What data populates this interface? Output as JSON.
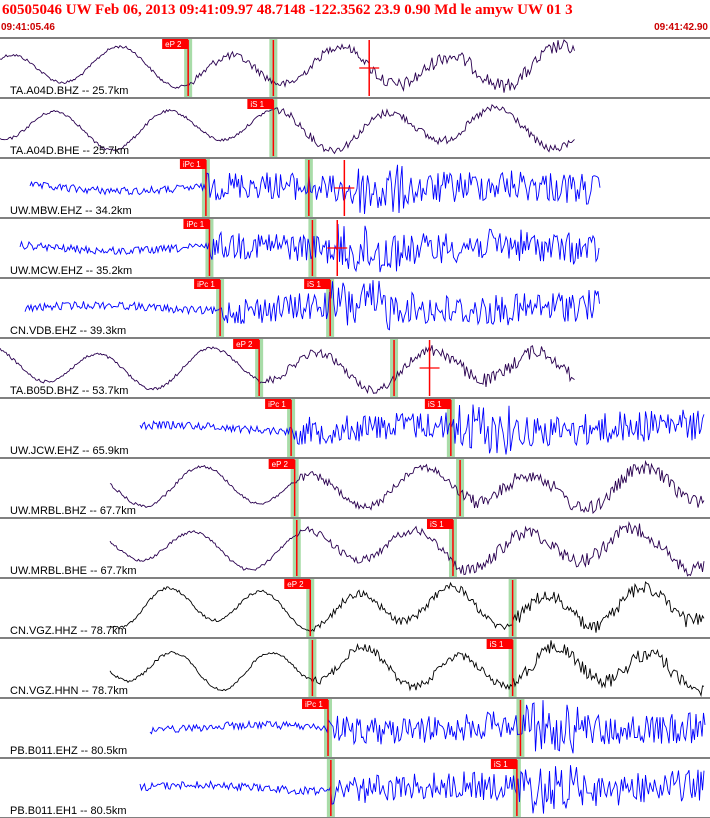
{
  "header": {
    "title": "60505046 UW Feb 06, 2013 09:41:09.97    48.7148 -122.3562 23.9 0.90 Md le amyw UW 01    3",
    "time_start": "09:41:05.46",
    "time_end": "09:41:42.90"
  },
  "colors": {
    "pick_flag": "#ff0000",
    "pick_window": "#a8dca8",
    "trace_blue": "#0000ff",
    "trace_purple": "#2a0050",
    "trace_black": "#000000",
    "separator": "#000000"
  },
  "traces": [
    {
      "label": "TA.A04D.BHZ -- 25.7km",
      "color": "purple",
      "type": "smooth",
      "picks": [
        {
          "label": "eP 2",
          "t": 0.265,
          "win": true
        },
        {
          "label": "",
          "t": 0.385,
          "win": true
        },
        {
          "label": "",
          "t": 0.52,
          "win": false,
          "cross": true
        }
      ]
    },
    {
      "label": "TA.A04D.BHE -- 25.7km",
      "color": "purple",
      "type": "smooth",
      "picks": [
        {
          "label": "iS 1",
          "t": 0.385,
          "win": true
        }
      ]
    },
    {
      "label": "UW.MBW.EHZ -- 34.2km",
      "color": "blue",
      "type": "noisy",
      "picks": [
        {
          "label": "iPc 1",
          "t": 0.29,
          "win": true
        },
        {
          "label": "",
          "t": 0.435,
          "win": true
        },
        {
          "label": "",
          "t": 0.485,
          "win": false,
          "cross": true
        }
      ]
    },
    {
      "label": "UW.MCW.EHZ -- 35.2km",
      "color": "blue",
      "type": "noisy",
      "picks": [
        {
          "label": "iPc 1",
          "t": 0.295,
          "win": true
        },
        {
          "label": "",
          "t": 0.44,
          "win": true
        },
        {
          "label": "",
          "t": 0.475,
          "win": false,
          "cross": true
        }
      ]
    },
    {
      "label": "CN.VDB.EHZ -- 39.3km",
      "color": "blue",
      "type": "noisy",
      "picks": [
        {
          "label": "iPc 1",
          "t": 0.31,
          "win": true
        },
        {
          "label": "iS 1",
          "t": 0.465,
          "win": true
        }
      ]
    },
    {
      "label": "TA.B05D.BHZ -- 53.7km",
      "color": "purple",
      "type": "smooth",
      "picks": [
        {
          "label": "eP 2",
          "t": 0.365,
          "win": true
        },
        {
          "label": "",
          "t": 0.555,
          "win": true
        },
        {
          "label": "",
          "t": 0.605,
          "win": false,
          "cross": true
        }
      ]
    },
    {
      "label": "UW.JCW.EHZ -- 65.9km",
      "color": "blue",
      "type": "noisy",
      "picks": [
        {
          "label": "iPc 1",
          "t": 0.41,
          "win": true
        },
        {
          "label": "iS 1",
          "t": 0.635,
          "win": true
        }
      ]
    },
    {
      "label": "UW.MRBL.BHZ -- 67.7km",
      "color": "purple",
      "type": "smooth",
      "picks": [
        {
          "label": "eP 2",
          "t": 0.415,
          "win": true
        },
        {
          "label": "",
          "t": 0.648,
          "win": true
        }
      ]
    },
    {
      "label": "UW.MRBL.BHE -- 67.7km",
      "color": "purple",
      "type": "smooth",
      "picks": [
        {
          "label": "",
          "t": 0.418,
          "win": true
        },
        {
          "label": "iS 1",
          "t": 0.638,
          "win": true
        }
      ]
    },
    {
      "label": "CN.VGZ.HHZ -- 78.7km",
      "color": "black",
      "type": "smooth",
      "picks": [
        {
          "label": "eP 2",
          "t": 0.437,
          "win": true
        },
        {
          "label": "",
          "t": 0.722,
          "win": true
        }
      ]
    },
    {
      "label": "CN.VGZ.HHN -- 78.7km",
      "color": "black",
      "type": "smooth",
      "picks": [
        {
          "label": "",
          "t": 0.44,
          "win": true
        },
        {
          "label": "iS 1",
          "t": 0.722,
          "win": true
        }
      ]
    },
    {
      "label": "PB.B011.EHZ -- 80.5km",
      "color": "blue",
      "type": "noisy",
      "picks": [
        {
          "label": "iPc 1",
          "t": 0.462,
          "win": true
        },
        {
          "label": "",
          "t": 0.733,
          "win": true
        }
      ]
    },
    {
      "label": "PB.B011.EH1 -- 80.5km",
      "color": "blue",
      "type": "noisy",
      "picks": [
        {
          "label": "",
          "t": 0.466,
          "win": true
        },
        {
          "label": "iS 1",
          "t": 0.728,
          "win": true
        }
      ]
    }
  ]
}
